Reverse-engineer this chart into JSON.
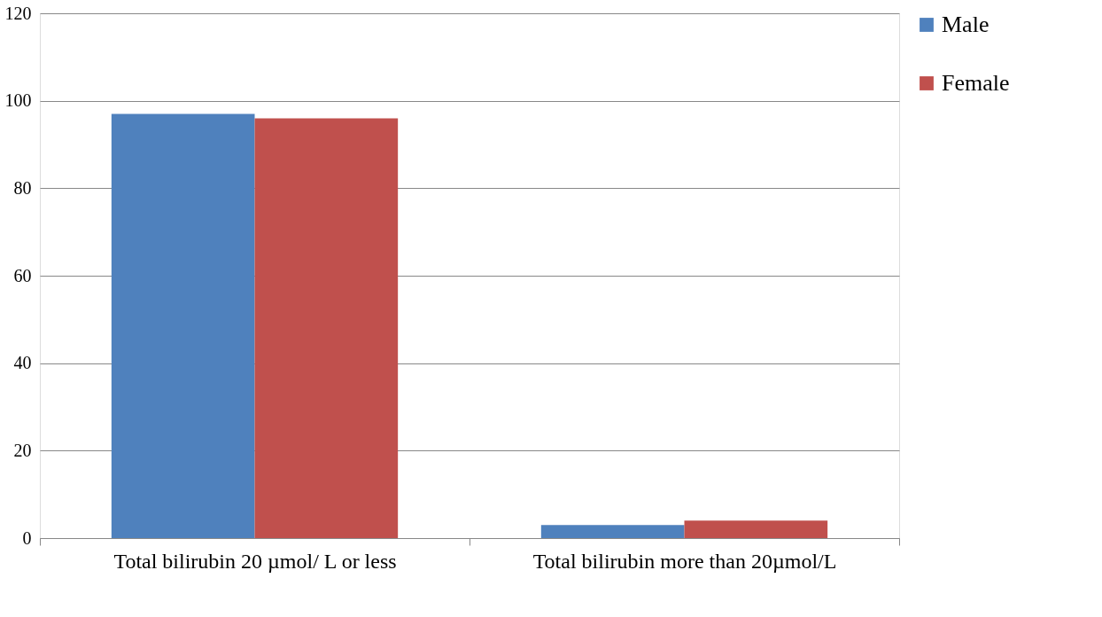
{
  "chart_data": {
    "type": "bar",
    "categories": [
      "Total bilirubin 20 µmol/ L or less",
      "Total bilirubin more than 20µmol/L"
    ],
    "series": [
      {
        "name": "Male",
        "color": "#4f81bd",
        "values": [
          97,
          3
        ]
      },
      {
        "name": "Female",
        "color": "#c0504d",
        "values": [
          96,
          4
        ]
      }
    ],
    "ylim": [
      0,
      120
    ],
    "yticks": [
      0,
      20,
      40,
      60,
      80,
      100,
      120
    ],
    "grid": "y",
    "legend": "right"
  }
}
